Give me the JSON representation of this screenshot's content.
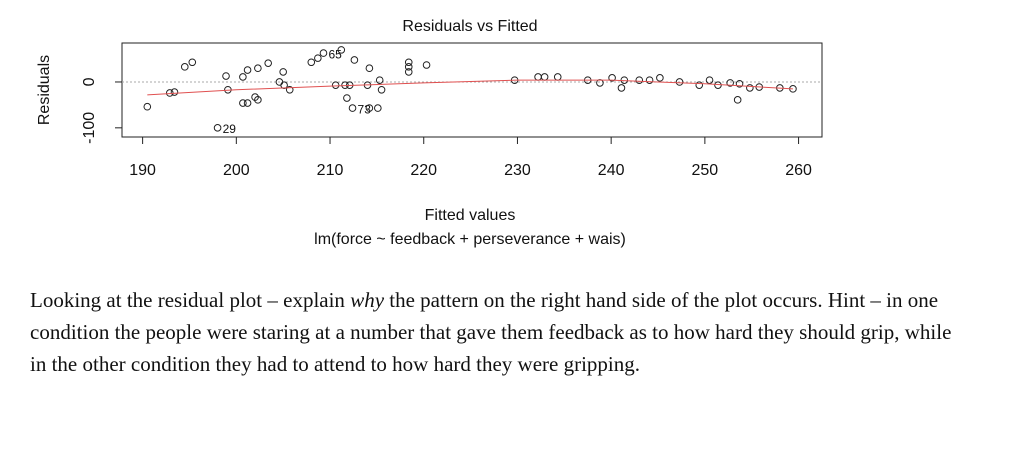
{
  "chart_data": {
    "type": "scatter",
    "title": "Residuals vs Fitted",
    "x_label": "Fitted values",
    "subtitle": "lm(force ~ feedback + perseverance + wais)",
    "y_label": "Residuals",
    "x": [
      190.5,
      192.9,
      193.4,
      194.5,
      195.3,
      198,
      198.9,
      199.1,
      200.7,
      201.2,
      202.3,
      203.4,
      200.7,
      201.2,
      202,
      202.3,
      205,
      204.6,
      205.1,
      205.7,
      208,
      208.7,
      209.3,
      211.2,
      210.6,
      211.6,
      212.1,
      212.6,
      214.2,
      211.8,
      212.4,
      214.2,
      215.1,
      214,
      215.3,
      215.5,
      218.4,
      218.4,
      218.4,
      220.3,
      229.7,
      232.2,
      232.9,
      234.3,
      237.5,
      238.8,
      240.1,
      241.4,
      241.1,
      243,
      244.1,
      245.2,
      247.3,
      249.4,
      250.5,
      251.4,
      252.7,
      253.7,
      253.5,
      254.8,
      255.8,
      258,
      259.4
    ],
    "values": [
      -54,
      -24,
      -22,
      33,
      43,
      -100,
      13,
      -17,
      11,
      26,
      30,
      41,
      -46,
      -46,
      -33,
      -39,
      22,
      0,
      -7,
      -17,
      43,
      52,
      63,
      70,
      -7,
      -7,
      -7,
      48,
      30,
      -35,
      -57,
      -57,
      -57,
      -7,
      4,
      -17,
      43,
      33,
      22,
      37,
      4,
      11,
      11,
      11,
      4,
      -2,
      9,
      4,
      -13,
      4,
      4,
      9,
      0,
      -7,
      4,
      -7,
      -2,
      -4,
      -39,
      -13,
      -11,
      -13,
      -15
    ],
    "value_labels": [
      null,
      null,
      null,
      null,
      null,
      "29",
      null,
      null,
      null,
      null,
      null,
      null,
      null,
      null,
      null,
      null,
      null,
      null,
      null,
      null,
      null,
      null,
      "65",
      null,
      null,
      null,
      null,
      null,
      null,
      null,
      "73",
      null,
      null,
      null,
      null,
      null,
      null,
      null,
      null,
      null,
      null,
      null,
      null,
      null,
      null,
      null,
      null,
      null,
      null,
      null,
      null,
      null,
      null,
      null,
      null,
      null,
      null,
      null,
      null,
      null,
      null,
      null,
      null
    ],
    "color": "#222222",
    "smooth": {
      "x": [
        190.5,
        200,
        210,
        220,
        230,
        240,
        250,
        259.4
      ],
      "values": [
        -28,
        -17,
        -9,
        -2,
        4,
        4,
        -4,
        -15
      ],
      "color": "#e05050"
    },
    "hline": 0,
    "hline_color": "#aaaaaa",
    "xlim": [
      187.8,
      262.5
    ],
    "ylim": [
      -120,
      85
    ],
    "xticks": [
      190,
      200,
      210,
      220,
      230,
      240,
      250,
      260
    ],
    "yticks": [
      -100,
      0
    ]
  },
  "document": {
    "paragraph": [
      "Looking at the residual plot – explain ",
      "why",
      " the pattern on the right hand side of the plot occurs. Hint – in one condition the people were staring at a number that gave them feedback as to how hard they should grip, while in the other condition they had to attend to how hard they were gripping."
    ]
  }
}
